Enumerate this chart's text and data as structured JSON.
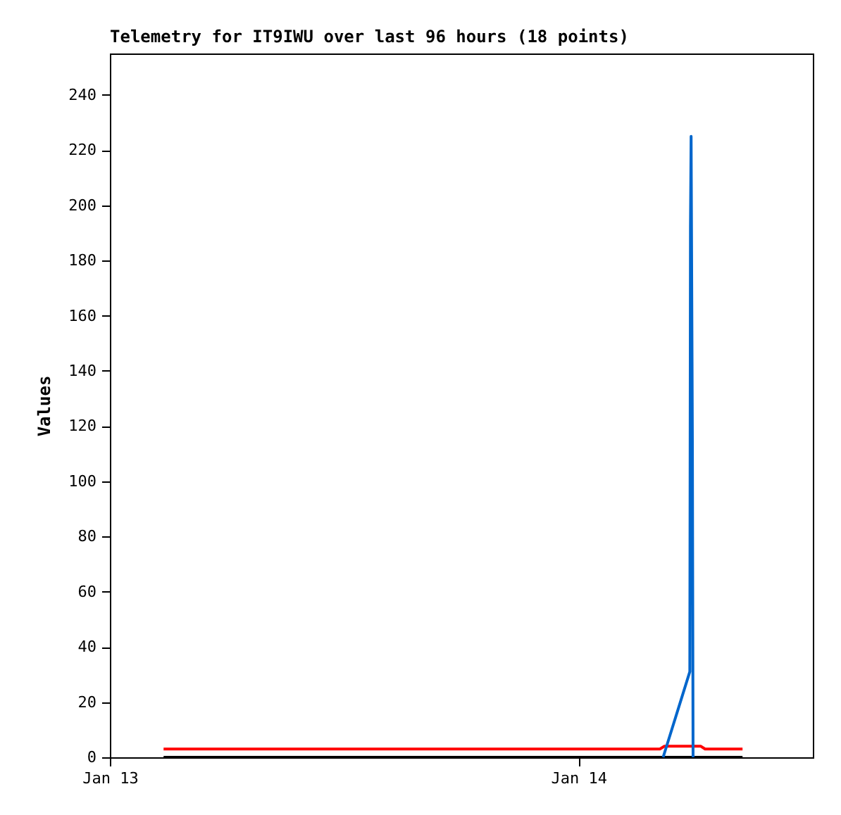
{
  "chart_data": {
    "type": "line",
    "title": "Telemetry for IT9IWU over last 96 hours (18 points)",
    "ylabel": "Values",
    "xlim": [
      "--01-13T00:00",
      "--01-14T12:00"
    ],
    "xticks": [
      {
        "value": "--01-13T00:00",
        "label": "Jan 13"
      },
      {
        "value": "--01-14T00:00",
        "label": "Jan 14"
      }
    ],
    "ylim": [
      0,
      255
    ],
    "yticks": [
      0,
      20,
      40,
      60,
      80,
      100,
      120,
      140,
      160,
      180,
      200,
      220,
      240
    ],
    "grid": false,
    "legend": false,
    "marker": "none",
    "line_style": "solid",
    "series": [
      {
        "color": "#000000",
        "x": [
          "--01-13T02:45",
          "--01-14T08:24"
        ],
        "values": [
          0,
          0
        ]
      },
      {
        "color": "#ff0000",
        "x": [
          "--01-13T02:45",
          "--01-14T04:10",
          "--01-14T04:24",
          "--01-14T06:16",
          "--01-14T06:29",
          "--01-14T08:24"
        ],
        "values": [
          3,
          3,
          4,
          4,
          3,
          3
        ]
      },
      {
        "color": "#0066cc",
        "x": [
          "--01-14T04:20",
          "--01-14T05:42",
          "--01-14T05:44",
          "--01-14T05:46",
          "--01-14T05:50",
          "--01-14T05:52"
        ],
        "values": [
          0,
          31,
          192,
          225,
          112,
          0
        ]
      }
    ]
  }
}
